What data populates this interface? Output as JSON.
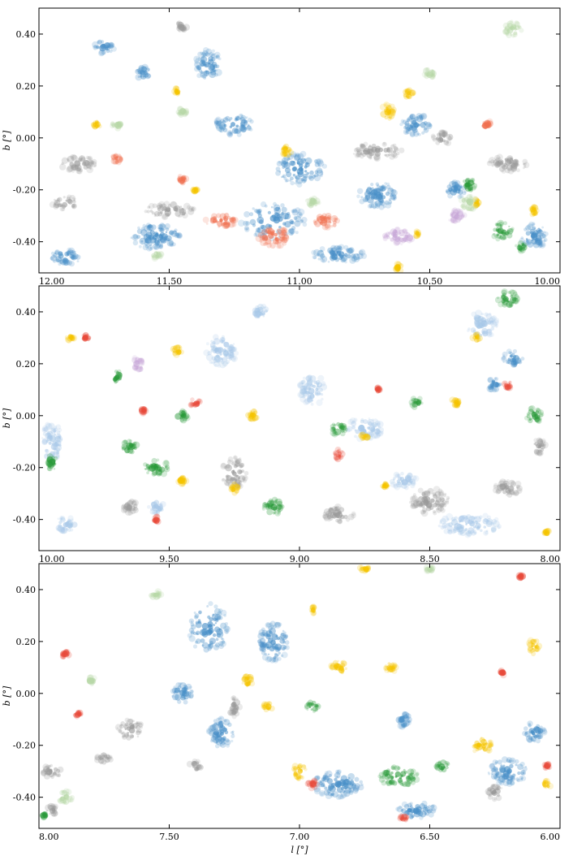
{
  "chart_data": [
    {
      "type": "scatter",
      "panel": "top",
      "xlabel": "",
      "ylabel": "b [°]",
      "xlim": [
        12.0,
        10.0
      ],
      "ylim": [
        -0.52,
        0.5
      ],
      "xticks": [
        12.0,
        11.5,
        11.0,
        10.5,
        10.0
      ],
      "xtick_labels": [
        "12.00",
        "11.50",
        "11.00",
        "10.50",
        "10.00"
      ],
      "yticks": [
        -0.4,
        -0.2,
        0.0,
        0.2,
        0.4
      ],
      "ytick_labels": [
        "-0.40",
        "-0.20",
        "0.00",
        "0.20",
        "0.40"
      ],
      "series": [
        {
          "color": "#4a90c8",
          "regions": [
            [
              11.9,
              -0.46,
              0.12,
              0.06
            ],
            [
              11.55,
              -0.38,
              0.2,
              0.1
            ],
            [
              11.1,
              -0.32,
              0.25,
              0.14
            ],
            [
              11.0,
              -0.12,
              0.2,
              0.12
            ],
            [
              11.25,
              0.05,
              0.15,
              0.08
            ],
            [
              10.7,
              -0.22,
              0.15,
              0.1
            ],
            [
              10.55,
              0.05,
              0.12,
              0.08
            ],
            [
              10.1,
              -0.38,
              0.1,
              0.1
            ],
            [
              11.75,
              0.35,
              0.08,
              0.05
            ],
            [
              11.35,
              0.28,
              0.1,
              0.12
            ],
            [
              11.6,
              0.25,
              0.06,
              0.05
            ],
            [
              10.85,
              -0.45,
              0.2,
              0.06
            ],
            [
              10.4,
              -0.2,
              0.08,
              0.06
            ]
          ]
        },
        {
          "color": "#9a9a9a",
          "regions": [
            [
              11.85,
              -0.1,
              0.14,
              0.06
            ],
            [
              11.9,
              -0.25,
              0.1,
              0.05
            ],
            [
              11.5,
              -0.28,
              0.2,
              0.05
            ],
            [
              10.7,
              -0.05,
              0.2,
              0.06
            ],
            [
              10.45,
              0.0,
              0.08,
              0.05
            ],
            [
              10.2,
              -0.1,
              0.15,
              0.06
            ],
            [
              11.45,
              0.43,
              0.04,
              0.04
            ]
          ]
        },
        {
          "color": "#f07050",
          "regions": [
            [
              11.1,
              -0.38,
              0.12,
              0.08
            ],
            [
              11.3,
              -0.32,
              0.12,
              0.05
            ],
            [
              10.9,
              -0.32,
              0.1,
              0.05
            ],
            [
              11.7,
              -0.08,
              0.04,
              0.03
            ],
            [
              11.45,
              -0.16,
              0.03,
              0.03
            ],
            [
              10.28,
              0.05,
              0.04,
              0.03
            ]
          ]
        },
        {
          "color": "#f5c400",
          "regions": [
            [
              11.05,
              -0.05,
              0.04,
              0.04
            ],
            [
              11.78,
              0.05,
              0.03,
              0.03
            ],
            [
              11.47,
              0.18,
              0.02,
              0.03
            ],
            [
              10.66,
              0.1,
              0.05,
              0.06
            ],
            [
              10.58,
              0.17,
              0.04,
              0.03
            ],
            [
              10.62,
              -0.5,
              0.03,
              0.03
            ],
            [
              11.4,
              -0.2,
              0.02,
              0.02
            ],
            [
              10.32,
              -0.25,
              0.02,
              0.03
            ],
            [
              10.1,
              -0.28,
              0.02,
              0.04
            ],
            [
              10.55,
              -0.37,
              0.02,
              0.02
            ]
          ]
        },
        {
          "color": "#2a9a3a",
          "regions": [
            [
              10.22,
              -0.36,
              0.08,
              0.07
            ],
            [
              10.35,
              -0.18,
              0.05,
              0.05
            ],
            [
              10.15,
              -0.42,
              0.04,
              0.03
            ]
          ]
        },
        {
          "color": "#b8d8a8",
          "regions": [
            [
              10.18,
              0.42,
              0.07,
              0.06
            ],
            [
              11.7,
              0.05,
              0.04,
              0.03
            ],
            [
              10.95,
              -0.25,
              0.05,
              0.04
            ],
            [
              11.45,
              0.1,
              0.04,
              0.03
            ],
            [
              10.5,
              0.25,
              0.04,
              0.04
            ],
            [
              11.55,
              -0.45,
              0.04,
              0.03
            ],
            [
              10.35,
              -0.25,
              0.06,
              0.06
            ]
          ]
        },
        {
          "color": "#c8a8d8",
          "regions": [
            [
              10.62,
              -0.38,
              0.12,
              0.06
            ],
            [
              10.4,
              -0.3,
              0.07,
              0.05
            ]
          ]
        }
      ]
    },
    {
      "type": "scatter",
      "panel": "middle",
      "xlabel": "",
      "ylabel": "b [°]",
      "xlim": [
        10.0,
        8.0
      ],
      "ylim": [
        -0.52,
        0.5
      ],
      "xticks": [
        10.0,
        9.5,
        9.0,
        8.5,
        8.0
      ],
      "xtick_labels": [
        "10.00",
        "9.50",
        "9.00",
        "8.50",
        "8.00"
      ],
      "yticks": [
        -0.4,
        -0.2,
        0.0,
        0.2,
        0.4
      ],
      "ytick_labels": [
        "-0.40",
        "-0.20",
        "0.00",
        "0.20",
        "0.40"
      ],
      "series": [
        {
          "color": "#a8c8e8",
          "regions": [
            [
              9.95,
              -0.1,
              0.08,
              0.15
            ],
            [
              9.9,
              -0.42,
              0.08,
              0.06
            ],
            [
              9.3,
              0.25,
              0.12,
              0.12
            ],
            [
              8.95,
              0.1,
              0.1,
              0.12
            ],
            [
              8.75,
              -0.05,
              0.15,
              0.08
            ],
            [
              8.3,
              0.35,
              0.12,
              0.1
            ],
            [
              8.35,
              -0.42,
              0.25,
              0.08
            ],
            [
              9.15,
              0.4,
              0.06,
              0.05
            ],
            [
              9.55,
              -0.35,
              0.06,
              0.06
            ],
            [
              8.6,
              -0.25,
              0.1,
              0.06
            ]
          ]
        },
        {
          "color": "#4a90c8",
          "regions": [
            [
              8.18,
              0.22,
              0.08,
              0.06
            ],
            [
              8.25,
              0.12,
              0.06,
              0.05
            ]
          ]
        },
        {
          "color": "#9a9a9a",
          "regions": [
            [
              8.5,
              -0.33,
              0.15,
              0.1
            ],
            [
              9.25,
              -0.22,
              0.1,
              0.12
            ],
            [
              8.85,
              -0.38,
              0.12,
              0.06
            ],
            [
              8.2,
              -0.28,
              0.1,
              0.06
            ],
            [
              9.65,
              -0.35,
              0.06,
              0.05
            ],
            [
              8.08,
              -0.12,
              0.05,
              0.06
            ]
          ]
        },
        {
          "color": "#2a9a3a",
          "regions": [
            [
              8.2,
              0.45,
              0.08,
              0.06
            ],
            [
              9.55,
              -0.2,
              0.1,
              0.06
            ],
            [
              9.65,
              -0.12,
              0.06,
              0.05
            ],
            [
              8.85,
              -0.05,
              0.06,
              0.05
            ],
            [
              9.1,
              -0.35,
              0.08,
              0.06
            ],
            [
              8.1,
              0.0,
              0.06,
              0.06
            ],
            [
              9.45,
              0.0,
              0.04,
              0.04
            ],
            [
              9.7,
              0.15,
              0.03,
              0.05
            ],
            [
              8.55,
              0.05,
              0.04,
              0.04
            ],
            [
              9.95,
              -0.18,
              0.04,
              0.06
            ]
          ]
        },
        {
          "color": "#e84a3a",
          "regions": [
            [
              9.82,
              0.3,
              0.03,
              0.03
            ],
            [
              9.4,
              0.05,
              0.04,
              0.03
            ],
            [
              8.85,
              -0.15,
              0.03,
              0.04
            ],
            [
              8.2,
              0.12,
              0.03,
              0.03
            ],
            [
              9.55,
              -0.4,
              0.02,
              0.03
            ],
            [
              9.6,
              0.02,
              0.02,
              0.02
            ],
            [
              8.7,
              0.1,
              0.02,
              0.02
            ]
          ]
        },
        {
          "color": "#f5c400",
          "regions": [
            [
              9.88,
              0.3,
              0.03,
              0.02
            ],
            [
              9.47,
              0.25,
              0.04,
              0.03
            ],
            [
              9.18,
              0.0,
              0.04,
              0.04
            ],
            [
              8.75,
              -0.08,
              0.03,
              0.02
            ],
            [
              9.25,
              -0.28,
              0.03,
              0.04
            ],
            [
              8.4,
              0.05,
              0.04,
              0.03
            ],
            [
              8.32,
              0.3,
              0.03,
              0.03
            ],
            [
              8.67,
              -0.27,
              0.03,
              0.02
            ],
            [
              9.45,
              -0.25,
              0.03,
              0.03
            ],
            [
              8.05,
              -0.45,
              0.02,
              0.02
            ]
          ]
        },
        {
          "color": "#c8a8d8",
          "regions": [
            [
              9.62,
              0.2,
              0.04,
              0.06
            ]
          ]
        }
      ]
    },
    {
      "type": "scatter",
      "panel": "bottom",
      "xlabel": "l [°]",
      "ylabel": "b [°]",
      "xlim": [
        8.0,
        6.0
      ],
      "ylim": [
        -0.52,
        0.5
      ],
      "xticks": [
        8.0,
        7.5,
        7.0,
        6.5,
        6.0
      ],
      "xtick_labels": [
        "8.00",
        "7.50",
        "7.00",
        "6.50",
        "6.00"
      ],
      "yticks": [
        -0.4,
        -0.2,
        0.0,
        0.2,
        0.4
      ],
      "ytick_labels": [
        "-0.40",
        "-0.20",
        "0.00",
        "0.20",
        "0.40"
      ],
      "series": [
        {
          "color": "#4a90c8",
          "regions": [
            [
              7.35,
              0.25,
              0.15,
              0.2
            ],
            [
              7.1,
              0.2,
              0.12,
              0.15
            ],
            [
              7.3,
              -0.15,
              0.1,
              0.12
            ],
            [
              6.85,
              -0.35,
              0.2,
              0.1
            ],
            [
              6.55,
              -0.45,
              0.15,
              0.06
            ],
            [
              6.2,
              -0.3,
              0.15,
              0.1
            ],
            [
              6.1,
              -0.15,
              0.08,
              0.08
            ],
            [
              6.6,
              -0.1,
              0.05,
              0.06
            ],
            [
              7.45,
              0.0,
              0.08,
              0.08
            ]
          ]
        },
        {
          "color": "#9a9a9a",
          "regions": [
            [
              7.95,
              -0.3,
              0.08,
              0.05
            ],
            [
              7.65,
              -0.14,
              0.1,
              0.08
            ],
            [
              7.75,
              -0.25,
              0.06,
              0.04
            ],
            [
              7.25,
              -0.05,
              0.04,
              0.08
            ],
            [
              6.25,
              -0.38,
              0.06,
              0.06
            ],
            [
              7.4,
              -0.28,
              0.05,
              0.04
            ],
            [
              7.95,
              -0.45,
              0.04,
              0.04
            ]
          ]
        },
        {
          "color": "#2a9a3a",
          "regions": [
            [
              6.62,
              -0.32,
              0.15,
              0.08
            ],
            [
              6.45,
              -0.28,
              0.05,
              0.04
            ],
            [
              6.95,
              -0.05,
              0.05,
              0.04
            ],
            [
              7.98,
              -0.47,
              0.02,
              0.02
            ]
          ]
        },
        {
          "color": "#f5c400",
          "regions": [
            [
              7.0,
              -0.3,
              0.05,
              0.06
            ],
            [
              6.85,
              0.1,
              0.06,
              0.05
            ],
            [
              6.3,
              -0.2,
              0.08,
              0.06
            ],
            [
              6.1,
              0.18,
              0.04,
              0.06
            ],
            [
              6.65,
              0.1,
              0.04,
              0.04
            ],
            [
              7.12,
              -0.05,
              0.04,
              0.03
            ],
            [
              6.05,
              -0.35,
              0.03,
              0.03
            ],
            [
              7.2,
              0.05,
              0.04,
              0.05
            ],
            [
              6.75,
              0.48,
              0.04,
              0.02
            ],
            [
              6.95,
              0.32,
              0.02,
              0.03
            ]
          ]
        },
        {
          "color": "#e84a3a",
          "regions": [
            [
              7.9,
              0.15,
              0.03,
              0.03
            ],
            [
              6.95,
              -0.35,
              0.04,
              0.03
            ],
            [
              6.6,
              -0.48,
              0.03,
              0.02
            ],
            [
              6.15,
              0.45,
              0.02,
              0.02
            ],
            [
              6.22,
              0.08,
              0.02,
              0.02
            ],
            [
              7.85,
              -0.08,
              0.03,
              0.02
            ],
            [
              6.05,
              -0.28,
              0.02,
              0.02
            ]
          ]
        },
        {
          "color": "#b8d8a8",
          "regions": [
            [
              7.9,
              -0.4,
              0.06,
              0.05
            ],
            [
              7.55,
              0.38,
              0.04,
              0.03
            ],
            [
              7.8,
              0.05,
              0.03,
              0.03
            ],
            [
              6.5,
              0.48,
              0.03,
              0.02
            ]
          ]
        }
      ]
    }
  ]
}
